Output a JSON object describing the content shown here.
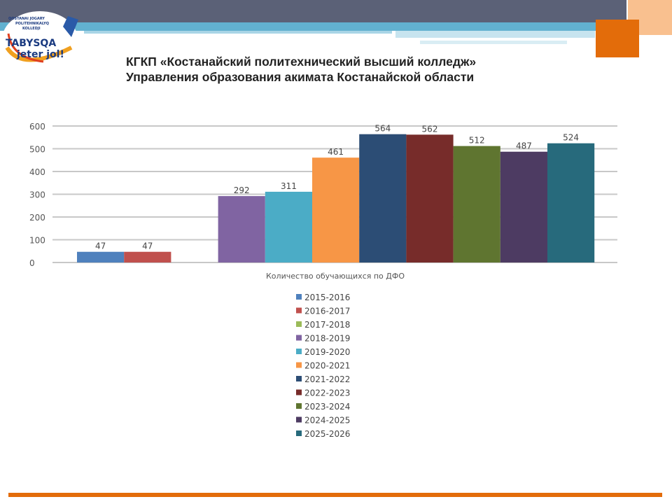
{
  "header": {
    "title_line1": "КГКП «Костанайский политехнический высший колледж»",
    "title_line2": "Управления образования акимата Костанайской области",
    "logo_text": [
      "QOSTANAI JOGARY",
      "POLITEHNIKALYQ",
      "KOLLEDJI",
      "TABYSQA",
      "jeter jol!"
    ]
  },
  "colors": {
    "accent": "#e36c0a",
    "band": "#5b6177",
    "blue": "#62b1d0"
  },
  "chart_data": {
    "type": "bar",
    "categories": [
      "Количество обучающихся по ДФО"
    ],
    "xlabel": "Количество обучающихся по ДФО",
    "ylabel": "",
    "ylim": [
      0,
      600
    ],
    "yticks": [
      0,
      100,
      200,
      300,
      400,
      500,
      600
    ],
    "grid": true,
    "legend_position": "bottom",
    "series": [
      {
        "name": "2015-2016",
        "values": [
          47
        ],
        "color": "#4f81bd"
      },
      {
        "name": "2016-2017",
        "values": [
          47
        ],
        "color": "#c0504d"
      },
      {
        "name": "2017-2018",
        "values": [
          0
        ],
        "color": "#9bbb59"
      },
      {
        "name": "2018-2019",
        "values": [
          292
        ],
        "color": "#8064a2"
      },
      {
        "name": "2019-2020",
        "values": [
          311
        ],
        "color": "#4bacc6"
      },
      {
        "name": "2020-2021",
        "values": [
          461
        ],
        "color": "#f79646"
      },
      {
        "name": "2021-2022",
        "values": [
          564
        ],
        "color": "#2c4d75"
      },
      {
        "name": "2022-2023",
        "values": [
          562
        ],
        "color": "#772c2a"
      },
      {
        "name": "2023-2024",
        "values": [
          512
        ],
        "color": "#5f7530"
      },
      {
        "name": "2024-2025",
        "values": [
          487
        ],
        "color": "#4d3b62"
      },
      {
        "name": "2025-2026",
        "values": [
          524
        ],
        "color": "#276a7c"
      }
    ]
  }
}
